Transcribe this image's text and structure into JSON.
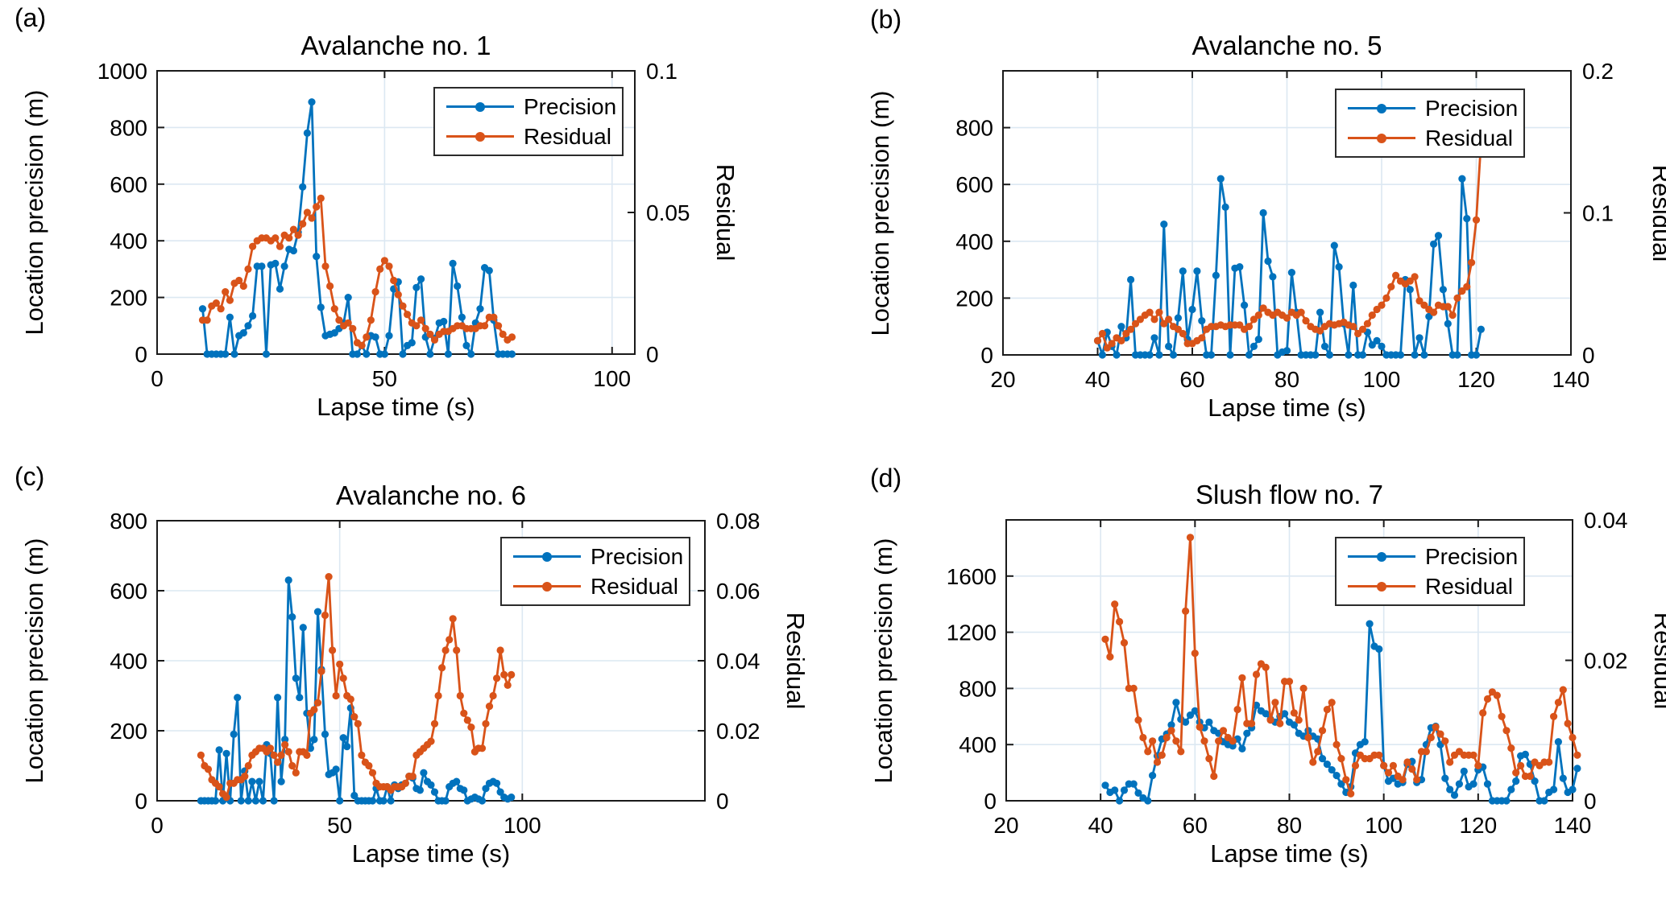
{
  "figure": {
    "background": "#ffffff",
    "precision_color": "#0072BD",
    "residual_color": "#D95319",
    "grid_color": "#dce8f2",
    "axis_color": "#1a1a1a",
    "text_color": "#000000"
  },
  "chart_data": [
    {
      "id": "a",
      "panel_label": "(a)",
      "type": "line",
      "title": "Avalanche no. 1",
      "xlabel": "Lapse time (s)",
      "ylabel_left": "Location precision (m)",
      "ylabel_right": "Residual",
      "legend": [
        "Precision",
        "Residual"
      ],
      "legend_position": "top-right",
      "grid": true,
      "xlim": [
        0,
        105
      ],
      "xticks": [
        0,
        50,
        100
      ],
      "xtick_labels": [
        "0",
        "50",
        "100"
      ],
      "ylim_left": [
        0,
        1000
      ],
      "yticks_left": [
        0,
        200,
        400,
        600,
        800,
        1000
      ],
      "ytick_left_labels": [
        "0",
        "200",
        "400",
        "600",
        "800",
        "1000"
      ],
      "ylim_right": [
        0,
        0.1
      ],
      "yticks_right": [
        0,
        0.05,
        0.1
      ],
      "ytick_right_labels": [
        "0",
        "0.05",
        "0.1"
      ],
      "series": [
        {
          "name": "Precision",
          "axis": "left",
          "x_start": 10,
          "x_step": 1,
          "y": [
            160,
            0,
            0,
            0,
            0,
            0,
            130,
            0,
            65,
            75,
            100,
            135,
            310,
            310,
            0,
            315,
            320,
            230,
            310,
            370,
            365,
            430,
            590,
            780,
            890,
            345,
            165,
            65,
            70,
            75,
            90,
            110,
            200,
            0,
            0,
            30,
            0,
            65,
            60,
            0,
            0,
            65,
            230,
            255,
            0,
            30,
            40,
            235,
            265,
            60,
            0,
            55,
            110,
            115,
            0,
            320,
            240,
            130,
            30,
            0,
            110,
            160,
            305,
            295,
            120,
            0,
            0,
            0,
            0
          ]
        },
        {
          "name": "Residual",
          "axis": "right",
          "x_start": 10,
          "x_step": 1,
          "y": [
            0.012,
            0.012,
            0.017,
            0.018,
            0.016,
            0.022,
            0.019,
            0.025,
            0.026,
            0.024,
            0.03,
            0.038,
            0.04,
            0.041,
            0.041,
            0.04,
            0.041,
            0.038,
            0.042,
            0.041,
            0.044,
            0.042,
            0.046,
            0.05,
            0.048,
            0.052,
            0.055,
            0.031,
            0.024,
            0.016,
            0.012,
            0.01,
            0.011,
            0.009,
            0.004,
            0.003,
            0.006,
            0.012,
            0.022,
            0.03,
            0.033,
            0.031,
            0.026,
            0.021,
            0.017,
            0.014,
            0.011,
            0.01,
            0.012,
            0.009,
            0.007,
            0.005,
            0.007,
            0.008,
            0.008,
            0.009,
            0.01,
            0.01,
            0.009,
            0.009,
            0.009,
            0.01,
            0.01,
            0.013,
            0.013,
            0.01,
            0.007,
            0.005,
            0.006
          ]
        }
      ]
    },
    {
      "id": "b",
      "panel_label": "(b)",
      "type": "line",
      "title": "Avalanche no. 5",
      "xlabel": "Lapse time (s)",
      "ylabel_left": "Location precision (m)",
      "ylabel_right": "Residual",
      "legend": [
        "Precision",
        "Residual"
      ],
      "legend_position": "top-right",
      "grid": true,
      "xlim": [
        20,
        140
      ],
      "xticks": [
        20,
        40,
        60,
        80,
        100,
        120,
        140
      ],
      "xtick_labels": [
        "20",
        "40",
        "60",
        "80",
        "100",
        "120",
        "140"
      ],
      "ylim_left": [
        0,
        1000
      ],
      "yticks_left": [
        0,
        200,
        400,
        600,
        800
      ],
      "ytick_left_labels": [
        "0",
        "200",
        "400",
        "600",
        "800"
      ],
      "ylim_right": [
        0,
        0.2
      ],
      "yticks_right": [
        0,
        0.1,
        0.2
      ],
      "ytick_right_labels": [
        "0",
        "0.1",
        "0.2"
      ],
      "series": [
        {
          "name": "Precision",
          "axis": "left",
          "x_start": 40,
          "x_step": 1,
          "y": [
            50,
            0,
            80,
            30,
            0,
            100,
            60,
            265,
            0,
            0,
            0,
            0,
            60,
            0,
            460,
            30,
            0,
            130,
            295,
            55,
            160,
            295,
            120,
            0,
            0,
            280,
            620,
            520,
            0,
            305,
            310,
            175,
            0,
            30,
            55,
            500,
            330,
            275,
            0,
            10,
            15,
            290,
            150,
            0,
            0,
            0,
            0,
            150,
            30,
            0,
            385,
            310,
            110,
            0,
            245,
            0,
            0,
            80,
            35,
            50,
            30,
            0,
            0,
            0,
            0,
            265,
            230,
            0,
            60,
            0,
            135,
            390,
            420,
            230,
            110,
            0,
            0,
            620,
            480,
            0,
            0,
            90
          ]
        },
        {
          "name": "Residual",
          "axis": "right",
          "x_start": 40,
          "x_step": 1,
          "y": [
            0.01,
            0.015,
            0.005,
            0.008,
            0.012,
            0.01,
            0.015,
            0.018,
            0.022,
            0.025,
            0.028,
            0.03,
            0.025,
            0.03,
            0.022,
            0.025,
            0.02,
            0.018,
            0.015,
            0.008,
            0.008,
            0.01,
            0.012,
            0.018,
            0.02,
            0.02,
            0.021,
            0.02,
            0.021,
            0.021,
            0.021,
            0.018,
            0.02,
            0.025,
            0.028,
            0.033,
            0.03,
            0.028,
            0.03,
            0.028,
            0.026,
            0.03,
            0.028,
            0.03,
            0.024,
            0.02,
            0.018,
            0.017,
            0.02,
            0.022,
            0.021,
            0.022,
            0.023,
            0.021,
            0.02,
            0.015,
            0.018,
            0.022,
            0.028,
            0.032,
            0.035,
            0.04,
            0.048,
            0.056,
            0.052,
            0.05,
            0.052,
            0.055,
            0.038,
            0.035,
            0.032,
            0.03,
            0.035,
            0.034,
            0.034,
            0.028,
            0.04,
            0.045,
            0.048,
            0.065,
            0.095,
            0.15
          ]
        }
      ]
    },
    {
      "id": "c",
      "panel_label": "(c)",
      "type": "line",
      "title": "Avalanche no. 6",
      "xlabel": "Lapse time (s)",
      "ylabel_left": "Location precision (m)",
      "ylabel_right": "Residual",
      "legend": [
        "Precision",
        "Residual"
      ],
      "legend_position": "top-right",
      "grid": true,
      "xlim": [
        0,
        150
      ],
      "xticks": [
        0,
        50,
        100
      ],
      "xtick_labels": [
        "0",
        "50",
        "100"
      ],
      "ylim_left": [
        0,
        800
      ],
      "yticks_left": [
        0,
        200,
        400,
        600,
        800
      ],
      "ytick_left_labels": [
        "0",
        "200",
        "400",
        "600",
        "800"
      ],
      "ylim_right": [
        0,
        0.08
      ],
      "yticks_right": [
        0,
        0.02,
        0.04,
        0.06,
        0.08
      ],
      "ytick_right_labels": [
        "0",
        "0.02",
        "0.04",
        "0.06",
        "0.08"
      ],
      "series": [
        {
          "name": "Precision",
          "axis": "left",
          "x_start": 12,
          "x_step": 1,
          "y": [
            0,
            0,
            0,
            0,
            0,
            145,
            0,
            135,
            0,
            190,
            295,
            0,
            85,
            0,
            55,
            0,
            55,
            0,
            160,
            135,
            0,
            295,
            55,
            175,
            630,
            525,
            350,
            295,
            495,
            250,
            150,
            175,
            540,
            375,
            190,
            75,
            80,
            90,
            0,
            180,
            155,
            265,
            15,
            0,
            0,
            0,
            0,
            0,
            35,
            0,
            0,
            40,
            0,
            45,
            35,
            45,
            50,
            70,
            65,
            35,
            30,
            80,
            55,
            45,
            25,
            0,
            0,
            0,
            40,
            50,
            55,
            35,
            30,
            0,
            5,
            10,
            5,
            0,
            35,
            50,
            55,
            50,
            25,
            10,
            5,
            10
          ]
        },
        {
          "name": "Residual",
          "axis": "right",
          "x_start": 12,
          "x_step": 1,
          "y": [
            0.013,
            0.01,
            0.009,
            0.006,
            0.005,
            0.004,
            0.002,
            0.001,
            0.005,
            0.005,
            0.006,
            0.006,
            0.007,
            0.01,
            0.013,
            0.014,
            0.015,
            0.015,
            0.014,
            0.015,
            0.013,
            0.011,
            0.013,
            0.016,
            0.014,
            0.01,
            0.008,
            0.014,
            0.014,
            0.013,
            0.025,
            0.026,
            0.028,
            0.037,
            0.053,
            0.064,
            0.043,
            0.03,
            0.039,
            0.035,
            0.03,
            0.029,
            0.024,
            0.022,
            0.013,
            0.011,
            0.01,
            0.008,
            0.005,
            0.004,
            0.004,
            0.004,
            0.003,
            0.004,
            0.004,
            0.004,
            0.005,
            0.007,
            0.007,
            0.013,
            0.014,
            0.015,
            0.016,
            0.017,
            0.022,
            0.03,
            0.038,
            0.043,
            0.046,
            0.052,
            0.043,
            0.03,
            0.025,
            0.023,
            0.021,
            0.014,
            0.015,
            0.015,
            0.022,
            0.027,
            0.03,
            0.035,
            0.043,
            0.036,
            0.033,
            0.036
          ]
        }
      ]
    },
    {
      "id": "d",
      "panel_label": "(d)",
      "type": "line",
      "title": "Slush flow no. 7",
      "xlabel": "Lapse time (s)",
      "ylabel_left": "Location precision (m)",
      "ylabel_right": "Residual",
      "legend": [
        "Precision",
        "Residual"
      ],
      "legend_position": "top-right",
      "grid": true,
      "xlim": [
        20,
        140
      ],
      "xticks": [
        20,
        40,
        60,
        80,
        100,
        120,
        140
      ],
      "xtick_labels": [
        "20",
        "40",
        "60",
        "80",
        "100",
        "120",
        "140"
      ],
      "ylim_left": [
        0,
        2000
      ],
      "yticks_left": [
        0,
        400,
        800,
        1200,
        1600
      ],
      "ytick_left_labels": [
        "0",
        "400",
        "800",
        "1200",
        "1600"
      ],
      "ylim_right": [
        0,
        0.04
      ],
      "yticks_right": [
        0,
        0.02,
        0.04
      ],
      "ytick_right_labels": [
        "0",
        "0.02",
        "0.04"
      ],
      "series": [
        {
          "name": "Precision",
          "axis": "left",
          "x_start": 41,
          "x_step": 1,
          "y": [
            110,
            60,
            75,
            0,
            75,
            120,
            120,
            55,
            20,
            0,
            180,
            320,
            440,
            475,
            540,
            700,
            580,
            560,
            610,
            640,
            560,
            520,
            560,
            500,
            480,
            420,
            400,
            390,
            440,
            370,
            480,
            520,
            680,
            640,
            620,
            580,
            560,
            600,
            620,
            560,
            540,
            480,
            460,
            500,
            460,
            440,
            300,
            260,
            220,
            180,
            120,
            60,
            100,
            340,
            400,
            420,
            1260,
            1100,
            1080,
            250,
            140,
            160,
            120,
            130,
            260,
            280,
            130,
            150,
            400,
            520,
            530,
            400,
            160,
            80,
            40,
            120,
            210,
            100,
            120,
            220,
            240,
            120,
            0,
            0,
            0,
            0,
            80,
            140,
            320,
            330,
            260,
            140,
            0,
            0,
            60,
            80,
            420,
            160,
            60,
            80,
            230
          ]
        },
        {
          "name": "Residual",
          "axis": "right",
          "x_start": 41,
          "x_step": 1,
          "y": [
            0.023,
            0.0205,
            0.028,
            0.0255,
            0.0225,
            0.016,
            0.016,
            0.0115,
            0.009,
            0.007,
            0.0085,
            0.0055,
            0.0065,
            0.009,
            0.01,
            0.0085,
            0.007,
            0.027,
            0.0375,
            0.021,
            0.0105,
            0.0085,
            0.006,
            0.0035,
            0.0085,
            0.01,
            0.009,
            0.0085,
            0.013,
            0.0175,
            0.011,
            0.011,
            0.018,
            0.0195,
            0.019,
            0.0115,
            0.014,
            0.011,
            0.017,
            0.017,
            0.0125,
            0.0115,
            0.016,
            0.009,
            0.0055,
            0.007,
            0.01,
            0.013,
            0.014,
            0.008,
            0.006,
            0.003,
            0.001,
            0.005,
            0.0065,
            0.006,
            0.006,
            0.0065,
            0.0065,
            0.005,
            0.004,
            0.005,
            0.0035,
            0.003,
            0.0055,
            0.0045,
            0.003,
            0.007,
            0.007,
            0.009,
            0.0105,
            0.0095,
            0.0085,
            0.0055,
            0.0065,
            0.007,
            0.0065,
            0.0065,
            0.0065,
            0.005,
            0.0125,
            0.0145,
            0.0155,
            0.015,
            0.012,
            0.01,
            0.0075,
            0.004,
            0.005,
            0.0035,
            0.0035,
            0.0055,
            0.005,
            0.0055,
            0.0055,
            0.012,
            0.014,
            0.0158,
            0.011,
            0.009,
            0.0065
          ]
        }
      ]
    }
  ]
}
